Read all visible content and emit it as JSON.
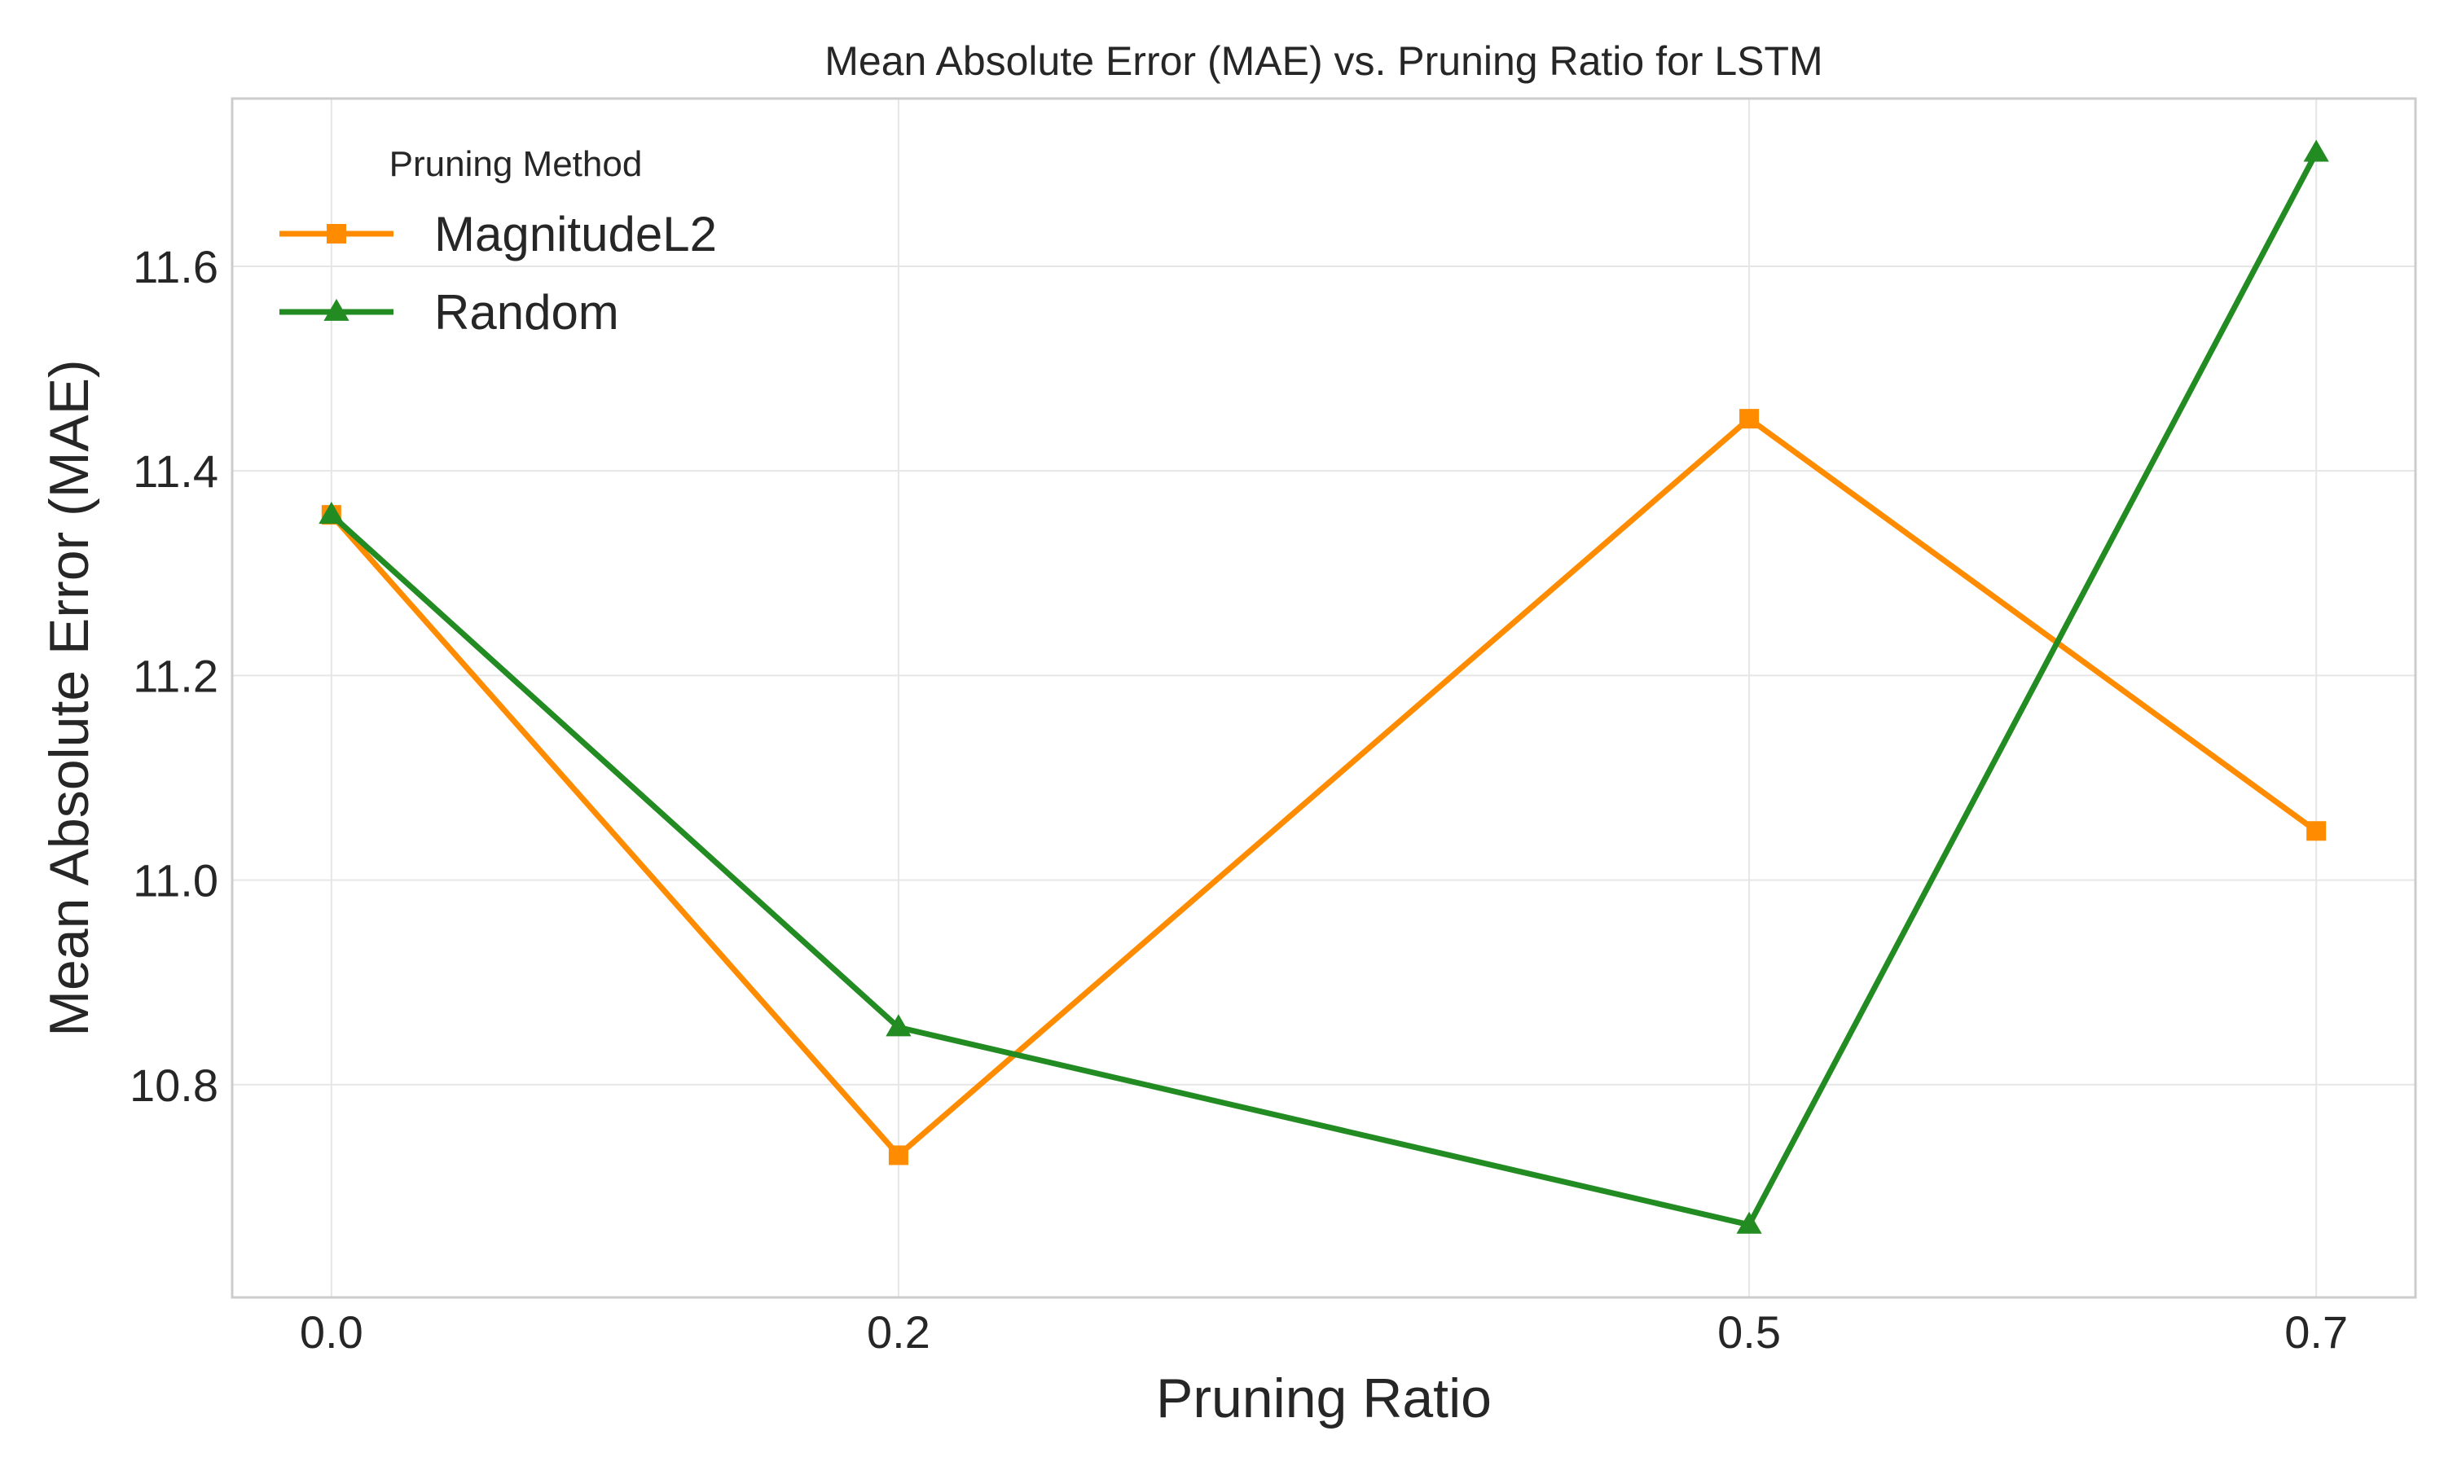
{
  "chart_data": {
    "type": "line",
    "title": "Mean Absolute Error (MAE) vs. Pruning Ratio for LSTM",
    "xlabel": "Pruning Ratio",
    "ylabel": "Mean Absolute Error (MAE)",
    "x": [
      0.0,
      0.2,
      0.5,
      0.7
    ],
    "x_tick_labels": [
      "0.0",
      "0.2",
      "0.5",
      "0.7"
    ],
    "xlim": [
      -0.035,
      0.735
    ],
    "ylim": [
      10.592,
      11.764
    ],
    "y_ticks": [
      10.8,
      11.0,
      11.2,
      11.4,
      11.6
    ],
    "y_tick_labels": [
      "10.8",
      "11.0",
      "11.2",
      "11.4",
      "11.6"
    ],
    "grid": true,
    "legend": {
      "title": "Pruning Method",
      "placement": "top-left"
    },
    "series": [
      {
        "name": "MagnitudeL2",
        "color": "#ff8c00",
        "marker": "square",
        "values": [
          11.357,
          10.731,
          11.451,
          11.048
        ]
      },
      {
        "name": "Random",
        "color": "#228b22",
        "marker": "triangle",
        "values": [
          11.357,
          10.856,
          10.663,
          11.711
        ]
      }
    ]
  }
}
